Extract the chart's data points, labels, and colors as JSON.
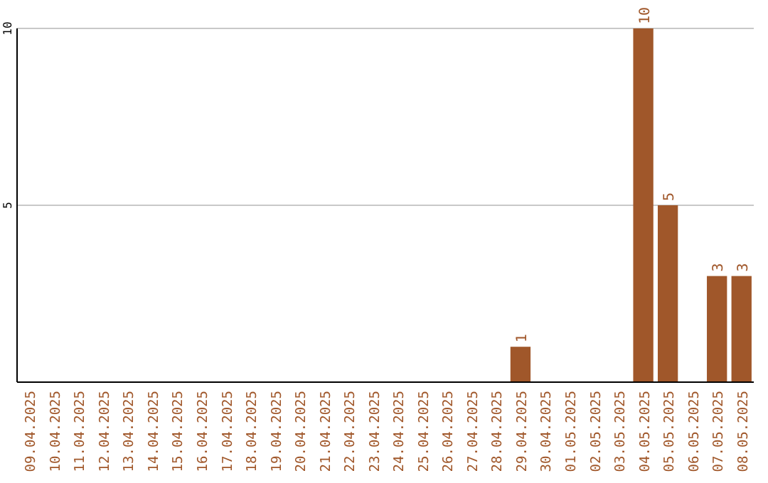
{
  "chart_data": {
    "type": "bar",
    "categories": [
      "09.04.2025",
      "10.04.2025",
      "11.04.2025",
      "12.04.2025",
      "13.04.2025",
      "14.04.2025",
      "15.04.2025",
      "16.04.2025",
      "17.04.2025",
      "18.04.2025",
      "19.04.2025",
      "20.04.2025",
      "21.04.2025",
      "22.04.2025",
      "23.04.2025",
      "24.04.2025",
      "25.04.2025",
      "26.04.2025",
      "27.04.2025",
      "28.04.2025",
      "29.04.2025",
      "30.04.2025",
      "01.05.2025",
      "02.05.2025",
      "03.05.2025",
      "04.05.2025",
      "05.05.2025",
      "06.05.2025",
      "07.05.2025",
      "08.05.2025"
    ],
    "values": [
      0,
      0,
      0,
      0,
      0,
      0,
      0,
      0,
      0,
      0,
      0,
      0,
      0,
      0,
      0,
      0,
      0,
      0,
      0,
      0,
      1,
      0,
      0,
      0,
      0,
      10,
      5,
      0,
      3,
      3
    ],
    "value_labels": [
      null,
      null,
      null,
      null,
      null,
      null,
      null,
      null,
      null,
      null,
      null,
      null,
      null,
      null,
      null,
      null,
      null,
      null,
      null,
      null,
      "1",
      null,
      null,
      null,
      null,
      "10",
      "5",
      null,
      "3",
      "3"
    ],
    "color": "#a0572a",
    "ylim": [
      0,
      10
    ],
    "yticks": [
      5,
      10
    ],
    "grid": "y"
  }
}
